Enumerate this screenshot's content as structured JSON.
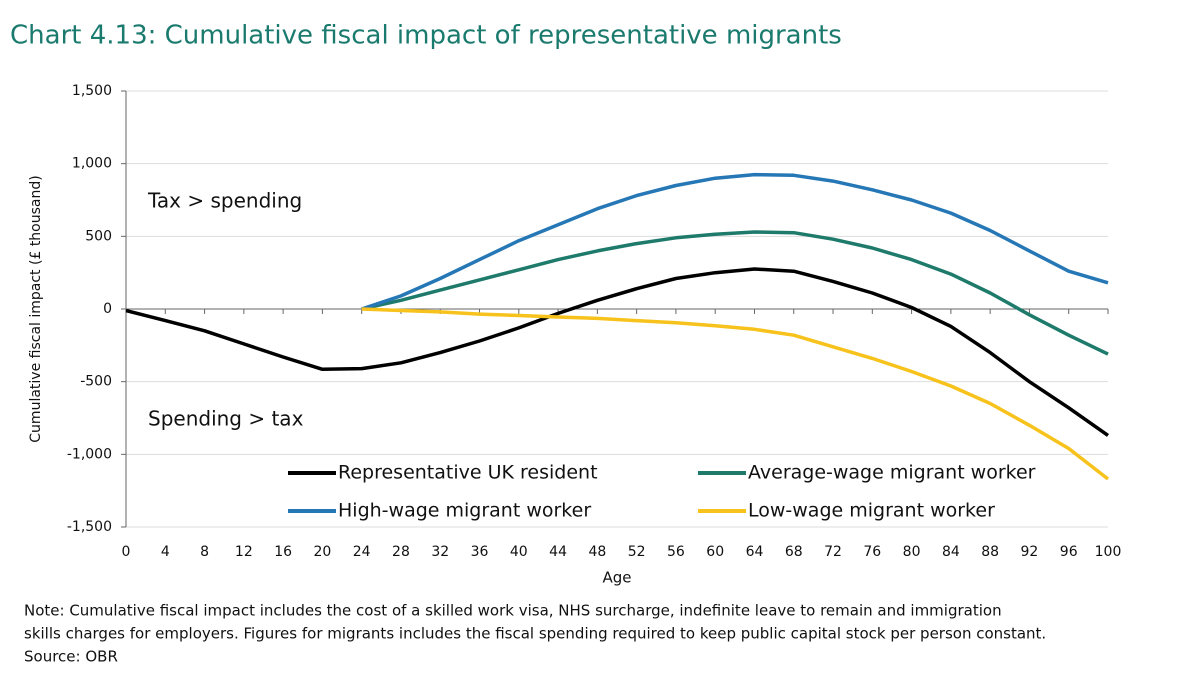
{
  "chart_data": {
    "type": "line",
    "title": "Chart 4.13: Cumulative fiscal impact of representative migrants",
    "y_label": "Cumulative fiscal impact (£ thousand)",
    "x_label": "Age",
    "annotations": [
      "Tax > spending",
      "Spending > tax"
    ],
    "x": [
      0,
      4,
      8,
      12,
      16,
      20,
      24,
      28,
      32,
      36,
      40,
      44,
      48,
      52,
      56,
      60,
      64,
      68,
      72,
      76,
      80,
      84,
      88,
      92,
      96,
      100
    ],
    "xlim": [
      0,
      100
    ],
    "xticks": [
      0,
      4,
      8,
      12,
      16,
      20,
      24,
      28,
      32,
      36,
      40,
      44,
      48,
      52,
      56,
      60,
      64,
      68,
      72,
      76,
      80,
      84,
      88,
      92,
      96,
      100
    ],
    "ylim": [
      -1500,
      1500
    ],
    "yticks": [
      {
        "value": -1500,
        "label": "-1,500"
      },
      {
        "value": -1000,
        "label": "-1,000"
      },
      -500,
      0,
      500,
      {
        "value": 1000,
        "label": "1,000"
      },
      {
        "value": 1500,
        "label": "1,500"
      }
    ],
    "grid": true,
    "series": [
      {
        "name": "Representative UK resident",
        "color": "#000000",
        "values": [
          -10,
          -80,
          -150,
          -240,
          -330,
          -415,
          -410,
          -370,
          -300,
          -220,
          -130,
          -30,
          60,
          140,
          210,
          250,
          275,
          260,
          190,
          110,
          10,
          -120,
          -300,
          -500,
          -680,
          -870
        ]
      },
      {
        "name": "Average-wage migrant worker",
        "color": "#1e7a6a",
        "values": [
          null,
          null,
          null,
          null,
          null,
          null,
          0,
          60,
          130,
          200,
          270,
          340,
          400,
          450,
          490,
          515,
          530,
          525,
          480,
          420,
          340,
          240,
          110,
          -40,
          -180,
          -310
        ]
      },
      {
        "name": "High-wage migrant worker",
        "color": "#2577b5",
        "values": [
          null,
          null,
          null,
          null,
          null,
          null,
          0,
          90,
          210,
          340,
          470,
          580,
          690,
          780,
          850,
          900,
          925,
          920,
          880,
          820,
          750,
          660,
          540,
          400,
          260,
          180
        ]
      },
      {
        "name": "Low-wage migrant worker",
        "color": "#f7c21b",
        "values": [
          null,
          null,
          null,
          null,
          null,
          null,
          0,
          -10,
          -20,
          -35,
          -45,
          -55,
          -65,
          -80,
          -95,
          -115,
          -140,
          -180,
          -260,
          -340,
          -430,
          -530,
          -650,
          -800,
          -960,
          -1170
        ]
      }
    ],
    "note_lines": [
      "Note: Cumulative fiscal impact includes the cost of a skilled work visa, NHS surcharge, indefinite leave to remain and immigration",
      "skills charges for employers. Figures for migrants includes the fiscal spending required to keep public capital stock per person constant.",
      "Source: OBR"
    ]
  }
}
